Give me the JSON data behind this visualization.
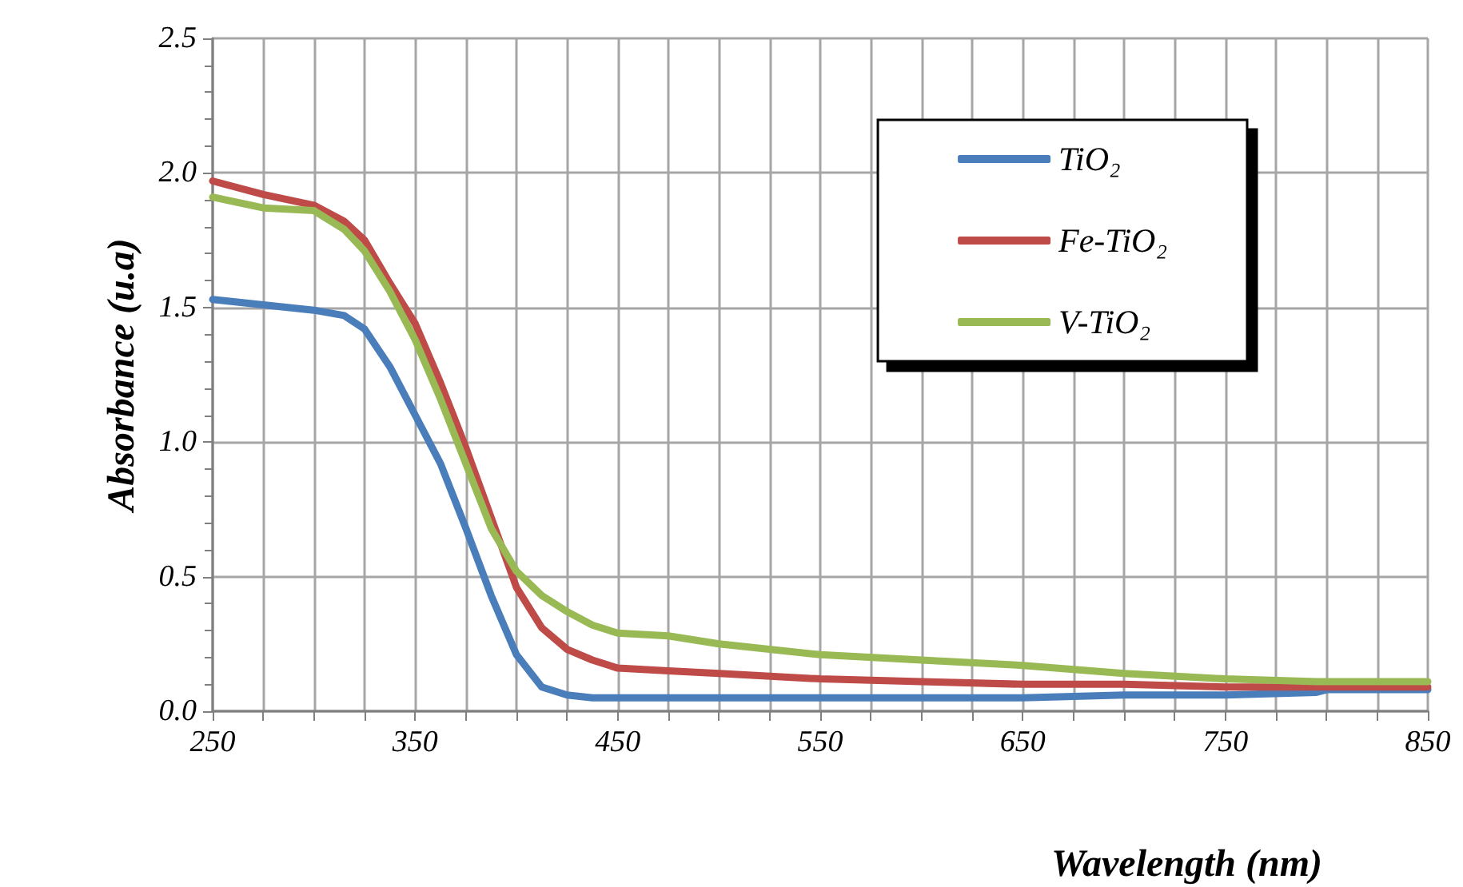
{
  "chart_data": {
    "type": "line",
    "xlabel": "Wavelength (nm)",
    "ylabel": "Absorbance (u.a)",
    "xlim": [
      250,
      850
    ],
    "xticks": [
      250,
      {
        "value": 275,
        "label": null
      },
      {
        "value": 300,
        "label": null
      },
      {
        "value": 325,
        "label": null
      },
      350,
      {
        "value": 375,
        "label": null
      },
      {
        "value": 400,
        "label": null
      },
      {
        "value": 425,
        "label": null
      },
      450,
      {
        "value": 475,
        "label": null
      },
      {
        "value": 500,
        "label": null
      },
      {
        "value": 525,
        "label": null
      },
      550,
      {
        "value": 575,
        "label": null
      },
      {
        "value": 600,
        "label": null
      },
      {
        "value": 625,
        "label": null
      },
      650,
      {
        "value": 675,
        "label": null
      },
      {
        "value": 700,
        "label": null
      },
      {
        "value": 725,
        "label": null
      },
      750,
      {
        "value": 775,
        "label": null
      },
      {
        "value": 800,
        "label": null
      },
      {
        "value": 825,
        "label": null
      },
      850
    ],
    "ylim": [
      0,
      2.5
    ],
    "yticks": [
      {
        "value": 0,
        "label": "0.0"
      },
      {
        "value": 0.5,
        "label": "0.5"
      },
      {
        "value": 1,
        "label": "1.0"
      },
      {
        "value": 1.5,
        "label": "1.5"
      },
      {
        "value": 2,
        "label": "2.0"
      },
      {
        "value": 2.5,
        "label": "2.5"
      }
    ],
    "grid": true,
    "legend": "top right",
    "marker": "none",
    "line_style": "solid",
    "x": [
      250,
      275,
      300,
      315,
      325,
      337.5,
      350,
      362.5,
      375,
      387.5,
      400,
      412.5,
      425,
      437.5,
      450,
      475,
      500,
      550,
      600,
      650,
      700,
      750,
      795,
      800,
      850
    ],
    "series": [
      {
        "name": "TiO₂",
        "color": "#4a7ebb",
        "values": [
          1.53,
          1.51,
          1.49,
          1.47,
          1.42,
          1.28,
          1.1,
          0.92,
          0.68,
          0.43,
          0.21,
          0.09,
          0.06,
          0.05,
          0.05,
          0.05,
          0.05,
          0.05,
          0.05,
          0.05,
          0.06,
          0.06,
          0.07,
          0.08,
          0.08
        ]
      },
      {
        "name": "Fe-TiO₂",
        "color": "#be4b48",
        "values": [
          1.97,
          1.92,
          1.88,
          1.82,
          1.75,
          1.59,
          1.44,
          1.22,
          0.98,
          0.72,
          0.46,
          0.31,
          0.23,
          0.19,
          0.16,
          0.15,
          0.14,
          0.12,
          0.11,
          0.1,
          0.1,
          0.09,
          0.09,
          0.09,
          0.09
        ]
      },
      {
        "name": "V-TiO₂",
        "color": "#98b954",
        "values": [
          1.91,
          1.87,
          1.86,
          1.79,
          1.71,
          1.56,
          1.38,
          1.16,
          0.92,
          0.68,
          0.52,
          0.43,
          0.37,
          0.32,
          0.29,
          0.28,
          0.25,
          0.21,
          0.19,
          0.17,
          0.14,
          0.12,
          0.11,
          0.11,
          0.11
        ]
      }
    ]
  }
}
